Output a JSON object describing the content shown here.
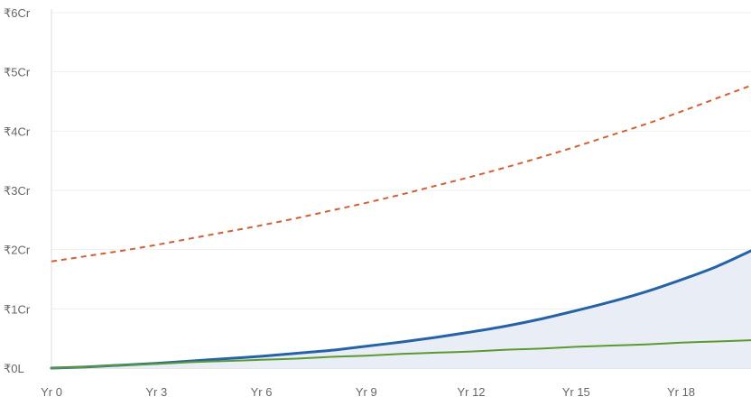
{
  "chart_data": {
    "type": "line",
    "title": "",
    "xlabel": "",
    "ylabel": "",
    "x": [
      0,
      1,
      2,
      3,
      4,
      5,
      6,
      7,
      8,
      9,
      10,
      11,
      12,
      13,
      14,
      15,
      16,
      17,
      18,
      19,
      20
    ],
    "x_tick_labels": [
      "Yr 0",
      "Yr 3",
      "Yr 6",
      "Yr 9",
      "Yr 12",
      "Yr 15",
      "Yr 18"
    ],
    "x_tick_values": [
      0,
      3,
      6,
      9,
      12,
      15,
      18
    ],
    "y_tick_labels": [
      "₹0L",
      "₹1Cr",
      "₹2Cr",
      "₹3Cr",
      "₹4Cr",
      "₹5Cr",
      "₹6Cr"
    ],
    "y_tick_values": [
      0,
      1,
      2,
      3,
      4,
      5,
      6
    ],
    "y_unit": "Cr",
    "xlim": [
      0,
      20
    ],
    "ylim": [
      0,
      6
    ],
    "grid": "horizontal",
    "series": [
      {
        "values": [
          1.8,
          1.89,
          1.98,
          2.08,
          2.19,
          2.3,
          2.41,
          2.53,
          2.66,
          2.79,
          2.93,
          3.08,
          3.23,
          3.39,
          3.56,
          3.74,
          3.93,
          4.12,
          4.33,
          4.55,
          4.77
        ],
        "color": "#d35f35",
        "style": "dashed"
      },
      {
        "values": [
          0.0,
          0.02,
          0.05,
          0.08,
          0.12,
          0.16,
          0.2,
          0.25,
          0.3,
          0.37,
          0.44,
          0.52,
          0.61,
          0.71,
          0.83,
          0.97,
          1.12,
          1.29,
          1.49,
          1.71,
          1.98
        ],
        "color": "#2563a6",
        "style": "solid",
        "fill": "#e9eef6"
      },
      {
        "values": [
          0.0,
          0.02,
          0.05,
          0.07,
          0.1,
          0.12,
          0.14,
          0.16,
          0.19,
          0.21,
          0.24,
          0.26,
          0.28,
          0.31,
          0.33,
          0.36,
          0.38,
          0.4,
          0.43,
          0.45,
          0.47
        ],
        "color": "#5a9a2e",
        "style": "solid"
      }
    ]
  }
}
